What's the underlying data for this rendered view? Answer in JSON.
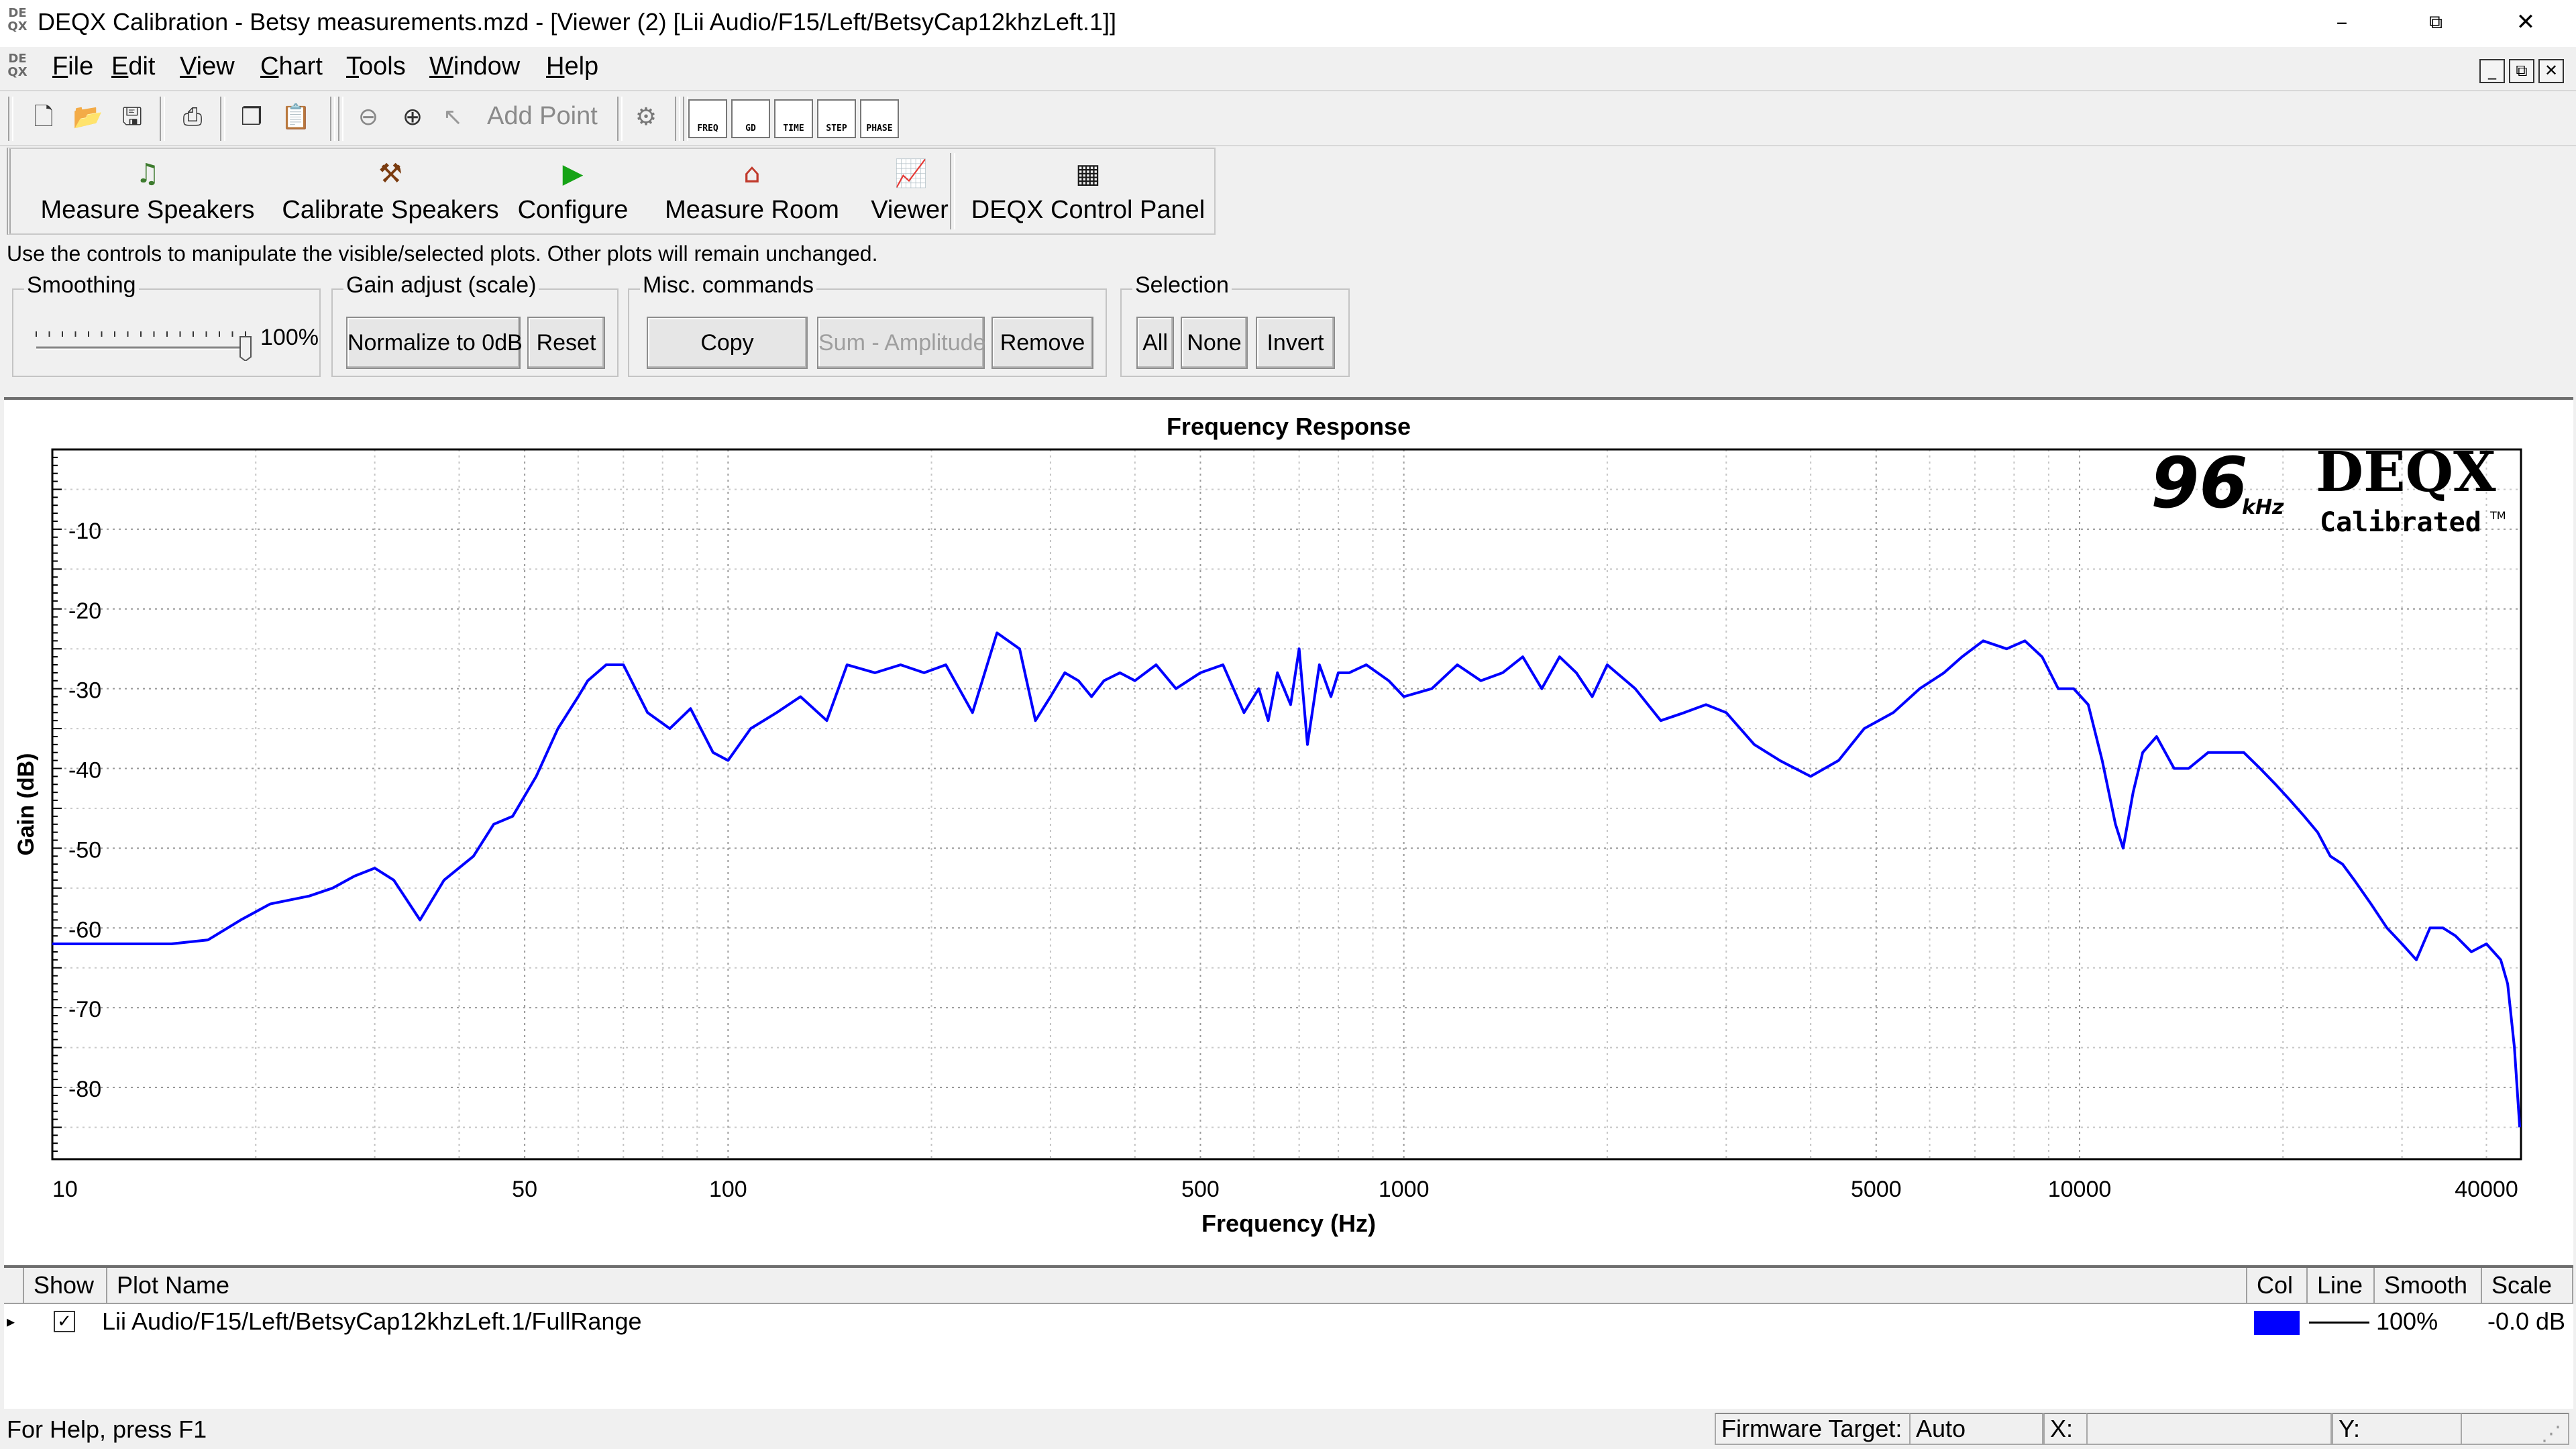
{
  "window": {
    "title": "DEQX Calibration - Betsy measurements.mzd - [Viewer (2) [Lii Audio/F15/Left/BetsyCap12khzLeft.1]]",
    "minimize_glyph": "–",
    "restore_glyph": "⧉",
    "close_glyph": "✕",
    "icon_text": "DE QX"
  },
  "menu": {
    "items": [
      "File",
      "Edit",
      "View",
      "Chart",
      "Tools",
      "Window",
      "Help"
    ],
    "mdi_controls": [
      "_",
      "⧉",
      "✕"
    ]
  },
  "toolbar": {
    "icons": [
      "new-file-icon",
      "open-folder-icon",
      "save-icon",
      "print-icon",
      "copy-icon",
      "paste-icon",
      "zoom-out-icon",
      "zoom-in-icon",
      "add-point-icon",
      "gear-icon"
    ],
    "add_point_label": "Add Point",
    "view_buttons": [
      "FREQ",
      "GD",
      "TIME",
      "STEP",
      "PHASE"
    ]
  },
  "actions": {
    "buttons": [
      "Measure Speakers",
      "Calibrate Speakers",
      "Configure",
      "Measure Room",
      "Viewer",
      "DEQX Control Panel"
    ]
  },
  "hint": "Use the controls to manipulate the visible/selected plots.  Other plots will remain unchanged.",
  "controls": {
    "smoothing": {
      "title": "Smoothing",
      "value": "100%",
      "level": 1.0
    },
    "gain": {
      "title": "Gain adjust (scale)",
      "normalize": "Normalize to 0dB",
      "reset": "Reset"
    },
    "misc": {
      "title": "Misc. commands",
      "copy": "Copy",
      "sum": "Sum - Amplitude",
      "remove": "Remove"
    },
    "selection": {
      "title": "Selection",
      "all": "All",
      "none": "None",
      "invert": "Invert"
    }
  },
  "logo": {
    "rate": "96",
    "unit": "kHz",
    "brand": "DEQX",
    "sub": "Calibrated",
    "tm": "TM"
  },
  "chart_data": {
    "type": "line",
    "title": "Frequency Response",
    "xlabel": "Frequency (Hz)",
    "ylabel": "Gain (dB)",
    "x_scale": "log",
    "xlim": [
      10,
      45000
    ],
    "ylim": [
      -89,
      0
    ],
    "x_ticks": [
      "10",
      "50",
      "100",
      "500",
      "1000",
      "5000",
      "10000",
      "40000"
    ],
    "y_ticks": [
      "-10",
      "-20",
      "-30",
      "-40",
      "-50",
      "-60",
      "-70",
      "-80"
    ],
    "grid": true,
    "series": [
      {
        "name": "Lii Audio/F15/Left/BetsyCap12khzLeft.1/FullRange",
        "color": "#0000ff",
        "x": [
          10,
          13,
          15,
          17,
          19,
          21,
          24,
          26,
          28,
          30,
          32,
          35,
          38,
          42,
          45,
          48,
          52,
          56,
          60,
          62,
          66,
          70,
          76,
          82,
          88,
          95,
          100,
          108,
          118,
          128,
          140,
          150,
          165,
          180,
          195,
          210,
          230,
          250,
          270,
          285,
          300,
          315,
          330,
          345,
          360,
          380,
          400,
          430,
          460,
          500,
          540,
          580,
          610,
          630,
          650,
          680,
          700,
          720,
          750,
          780,
          800,
          830,
          880,
          950,
          1000,
          1100,
          1200,
          1300,
          1400,
          1500,
          1600,
          1700,
          1800,
          1900,
          2000,
          2200,
          2400,
          2600,
          2800,
          3000,
          3300,
          3600,
          4000,
          4400,
          4800,
          5300,
          5800,
          6300,
          6700,
          7200,
          7800,
          8300,
          8800,
          9300,
          9800,
          10300,
          10800,
          11300,
          11600,
          12000,
          12400,
          13000,
          13800,
          14500,
          15500,
          16500,
          17500,
          18500,
          19500,
          20500,
          21500,
          22500,
          23500,
          24500,
          25500,
          27000,
          28500,
          30000,
          31500,
          33000,
          34500,
          36000,
          38000,
          40000,
          42000,
          43000,
          44000,
          44800
        ],
        "y": [
          -62,
          -62,
          -62,
          -61.5,
          -59,
          -57,
          -56,
          -55,
          -53.5,
          -52.5,
          -54,
          -59,
          -54,
          -51,
          -47,
          -46,
          -41,
          -35,
          -31,
          -29,
          -27,
          -27,
          -33,
          -35,
          -32.5,
          -38,
          -39,
          -35,
          -33,
          -31,
          -34,
          -27,
          -28,
          -27,
          -28,
          -27,
          -33,
          -23,
          -25,
          -34,
          -31,
          -28,
          -29,
          -31,
          -29,
          -28,
          -29,
          -27,
          -30,
          -28,
          -27,
          -33,
          -30,
          -34,
          -28,
          -32,
          -25,
          -37,
          -27,
          -31,
          -28,
          -28,
          -27,
          -29,
          -31,
          -30,
          -27,
          -29,
          -28,
          -26,
          -30,
          -26,
          -28,
          -31,
          -27,
          -30,
          -34,
          -33,
          -32,
          -33,
          -37,
          -39,
          -41,
          -39,
          -35,
          -33,
          -30,
          -28,
          -26,
          -24,
          -25,
          -24,
          -26,
          -30,
          -30,
          -32,
          -39,
          -47,
          -50,
          -43,
          -38,
          -36,
          -40,
          -40,
          -38,
          -38,
          -38,
          -40,
          -42,
          -44,
          -46,
          -48,
          -51,
          -52,
          -54,
          -57,
          -60,
          -62,
          -64,
          -60,
          -60,
          -61,
          -63,
          -62,
          -64,
          -67,
          -75,
          -85
        ]
      }
    ]
  },
  "plot_list": {
    "headers": [
      "Show",
      "Plot Name",
      "Col",
      "Line",
      "Smooth",
      "Scale"
    ],
    "rows": [
      {
        "show": true,
        "name": "Lii Audio/F15/Left/BetsyCap12khzLeft.1/FullRange",
        "color": "#0000ff",
        "smooth": "100%",
        "scale": "-0.0 dB"
      }
    ]
  },
  "status": {
    "help": "For Help, press F1",
    "firmware_label": "Firmware Target:",
    "firmware_value": "Auto",
    "x_label": "X:",
    "x_value": "",
    "y_label": "Y:",
    "y_value": ""
  }
}
